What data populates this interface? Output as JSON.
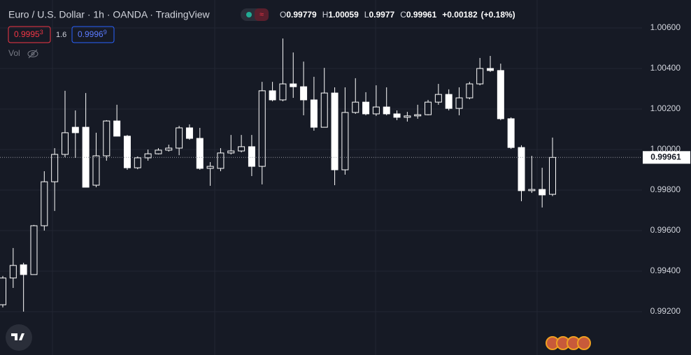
{
  "header": {
    "title": "Euro / U.S. Dollar · 1h · OANDA · TradingView",
    "ohlc_labels": [
      "O",
      "H",
      "L",
      "C"
    ],
    "change": "+0.00182",
    "change_pct": "(+0.18%)"
  },
  "quote": {
    "bid": [
      "0.9995",
      "3"
    ],
    "spread": 1.6,
    "ask": [
      "0.9996",
      "9"
    ]
  },
  "volume_label": "Vol",
  "chart_data": {
    "type": "candlestick",
    "open": [
      0.99234,
      0.99366,
      0.99431,
      0.99383,
      0.99624,
      0.99841,
      0.99976,
      1.0011,
      1.0011,
      0.99824,
      0.99969,
      1.00141,
      1.00066,
      0.9991,
      0.99959,
      0.99979,
      0.99997,
      1.00007,
      1.00107,
      1.00055,
      0.99907,
      0.99907,
      0.99983,
      0.99993,
      1.00014,
      0.99917,
      1.0029,
      1.00245,
      1.00324,
      1.0031,
      1.00245,
      1.0011,
      1.00279,
      0.999,
      1.00183,
      1.00234,
      1.00176,
      1.0021,
      1.00176,
      1.00159,
      1.00166,
      1.00172,
      1.00234,
      1.00272,
      1.00203,
      1.00255,
      1.00324,
      1.004,
      1.0039,
      1.00152,
      1.0001,
      0.99797,
      0.99803,
      0.99779
    ],
    "high": [
      0.99376,
      0.99514,
      0.99441,
      0.99628,
      0.99893,
      1.00007,
      1.0029,
      1.00193,
      1.00279,
      1.00083,
      1.00145,
      1.00221,
      1.00072,
      0.99966,
      1.0,
      1.00007,
      1.00024,
      1.00117,
      1.00124,
      1.00107,
      0.99938,
      1.00007,
      1.00072,
      1.00072,
      1.00072,
      1.00334,
      1.00334,
      1.00548,
      1.00479,
      1.00434,
      1.00359,
      1.00403,
      1.00307,
      1.00307,
      1.00352,
      1.00283,
      1.00317,
      1.00307,
      1.00193,
      1.00186,
      1.00221,
      1.00245,
      1.00324,
      1.00297,
      1.00307,
      1.00334,
      1.00452,
      1.00462,
      1.00424,
      1.00159,
      1.00021,
      0.99969,
      0.9991,
      1.00059
    ],
    "low": [
      0.99221,
      0.99317,
      0.992,
      0.99383,
      0.996,
      0.99697,
      0.99962,
      0.99959,
      0.99814,
      0.99814,
      0.99945,
      1.00066,
      0.999,
      0.99903,
      0.99945,
      0.99976,
      0.9999,
      0.99972,
      1.00048,
      0.999,
      0.99821,
      0.99893,
      0.99976,
      0.99986,
      0.99869,
      0.99828,
      1.00238,
      1.00238,
      1.00255,
      1.00169,
      1.00093,
      1.0011,
      0.99824,
      0.99876,
      1.00176,
      1.00169,
      1.00166,
      1.00169,
      1.00145,
      1.00138,
      1.00152,
      1.00169,
      1.00221,
      1.00193,
      1.00169,
      1.00248,
      1.00317,
      1.00383,
      1.00145,
      1.00003,
      0.99745,
      0.99786,
      0.99714,
      0.9977
    ],
    "close": [
      0.99366,
      0.99428,
      0.99383,
      0.99624,
      0.99841,
      0.99976,
      1.00083,
      1.00083,
      0.99814,
      0.99969,
      1.00141,
      1.00066,
      0.9991,
      0.99959,
      0.99979,
      0.99997,
      1.00007,
      1.00107,
      1.00055,
      0.99907,
      0.99917,
      0.99983,
      0.99993,
      1.00014,
      0.99917,
      1.0029,
      1.00245,
      1.00324,
      1.0031,
      1.00245,
      1.0011,
      1.00279,
      0.999,
      1.00183,
      1.00234,
      1.00176,
      1.0021,
      1.00176,
      1.00159,
      1.00166,
      1.00172,
      1.00234,
      1.00272,
      1.00203,
      1.00255,
      1.00324,
      1.004,
      1.0039,
      1.00152,
      1.0001,
      0.99797,
      0.99803,
      0.99776,
      0.99961
    ],
    "ylim": [
      0.98986,
      1.00738
    ],
    "yticks": [
      {
        "value": 0.992,
        "label": "0.99200"
      },
      {
        "value": 0.994,
        "label": "0.99400"
      },
      {
        "value": 0.996,
        "label": "0.99600"
      },
      {
        "value": 0.998,
        "label": "0.99800"
      },
      {
        "value": 1.0,
        "label": "1.00000"
      },
      {
        "value": 1.002,
        "label": "1.00200"
      },
      {
        "value": 1.004,
        "label": "1.00400"
      },
      {
        "value": 1.006,
        "label": "1.00600"
      }
    ],
    "grid": true,
    "colors": {
      "up_body": "#161a25",
      "down_body": "#ffffff",
      "outline": "#ffffff",
      "wick": "#ffffff"
    },
    "last_price_line": true
  }
}
